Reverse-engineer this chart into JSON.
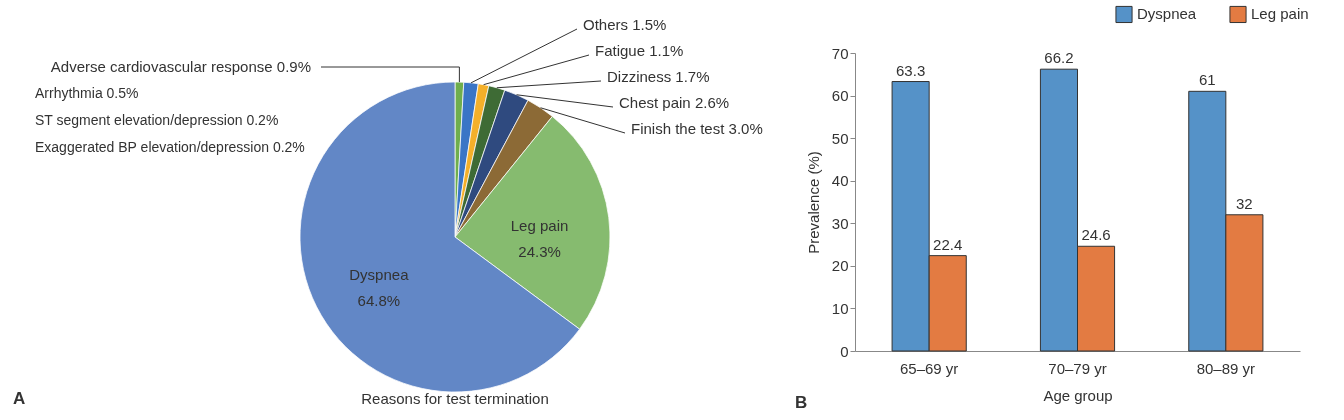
{
  "chart_data": [
    {
      "type": "pie",
      "title": "Reasons for test termination",
      "categories": [
        "Adverse cardiovascular response",
        "Others",
        "Fatigue",
        "Dizziness",
        "Chest pain",
        "Finish the test",
        "Leg pain",
        "Dyspnea"
      ],
      "values": [
        0.9,
        1.5,
        1.1,
        1.7,
        2.6,
        3.0,
        24.3,
        64.8
      ],
      "value_labels": [
        "0.9%",
        "1.5%",
        "1.1%",
        "1.7%",
        "2.6%",
        "3.0%",
        "24.3%",
        "64.8%"
      ],
      "colors": [
        "#6fae4d",
        "#3a75c6",
        "#f4b02a",
        "#3e6b35",
        "#2f4a7f",
        "#8c6a36",
        "#86bb6f",
        "#6287c6"
      ],
      "annotations": [
        "A",
        "Arrhythmia 0.5%",
        "ST segment elevation/depression 0.2%",
        "Exaggerated BP elevation/depression 0.2%"
      ]
    },
    {
      "type": "bar",
      "xlabel": "Age group",
      "ylabel": "Prevalence (%)",
      "categories": [
        "65–69 yr",
        "70–79 yr",
        "80–89 yr"
      ],
      "series": [
        {
          "name": "Dyspnea",
          "color": "#5592c8",
          "values": [
            63.3,
            66.2,
            61
          ]
        },
        {
          "name": "Leg pain",
          "color": "#e37b42",
          "values": [
            22.4,
            24.6,
            32
          ]
        }
      ],
      "ylim": [
        0,
        70
      ],
      "yticks": [
        0,
        10,
        20,
        30,
        40,
        50,
        60,
        70
      ],
      "data_labels": true,
      "legend": "top right",
      "grid": false,
      "annotations": [
        "B"
      ]
    }
  ]
}
